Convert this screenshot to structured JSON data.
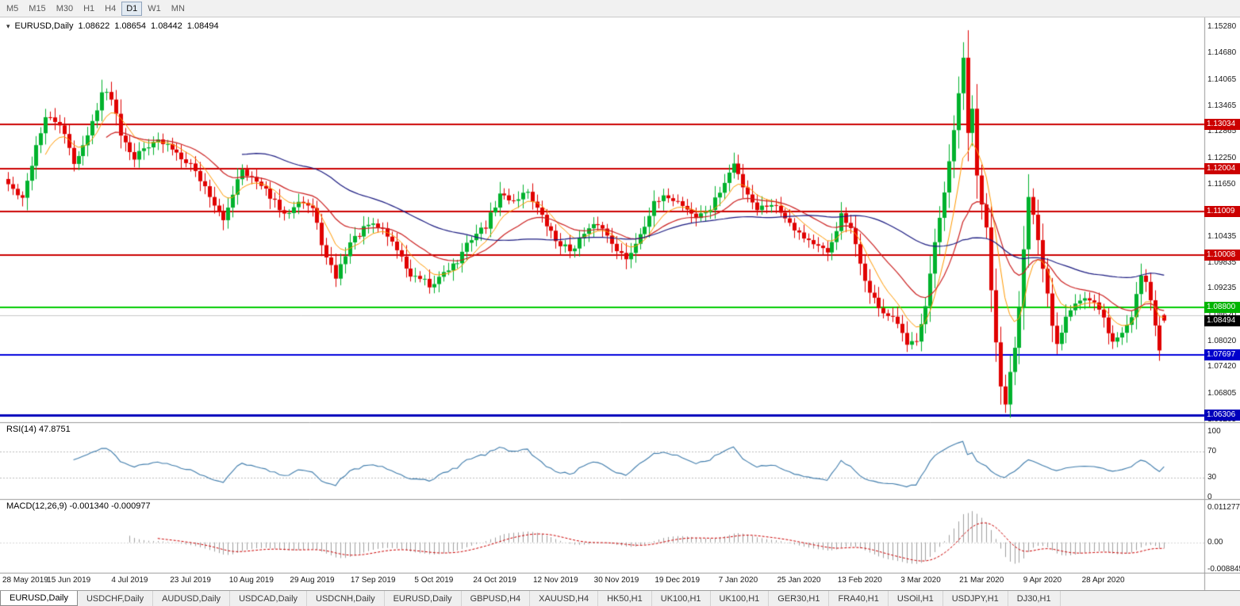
{
  "toolbar": {
    "timeframes": [
      "M5",
      "M15",
      "M30",
      "H1",
      "H4",
      "D1",
      "W1",
      "MN"
    ],
    "active_timeframe": "D1"
  },
  "chart_header": {
    "collapse_icon": "▾",
    "symbol": "EURUSD,Daily",
    "open": "1.08622",
    "high": "1.08654",
    "low": "1.08442",
    "close": "1.08494"
  },
  "price_axis": {
    "ticks": [
      "1.15280",
      "1.14680",
      "1.14065",
      "1.13465",
      "1.12865",
      "1.12250",
      "1.11650",
      "1.11050",
      "1.10435",
      "1.09835",
      "1.09235",
      "1.08620",
      "1.08020",
      "1.07420",
      "1.06805",
      "1.06205"
    ]
  },
  "levels": [
    {
      "value": "1.13034",
      "price": 1.13034,
      "color": "#cc0000",
      "line_width": 2,
      "badge_bg": "#cc0000"
    },
    {
      "value": "1.12004",
      "price": 1.12004,
      "color": "#cc0000",
      "line_width": 2,
      "badge_bg": "#cc0000"
    },
    {
      "value": "1.11009",
      "price": 1.11009,
      "color": "#cc0000",
      "line_width": 2,
      "badge_bg": "#cc0000"
    },
    {
      "value": "1.10008",
      "price": 1.10008,
      "color": "#cc0000",
      "line_width": 2,
      "badge_bg": "#cc0000"
    },
    {
      "value": "1.08800",
      "price": 1.088,
      "color": "#00cc00",
      "line_width": 2,
      "badge_bg": "#00b400"
    },
    {
      "value": "1.07697",
      "price": 1.07697,
      "color": "#0000dd",
      "line_width": 2,
      "badge_bg": "#0000cc"
    },
    {
      "value": "1.06306",
      "price": 1.06306,
      "color": "#0000bb",
      "line_width": 3,
      "badge_bg": "#0000bb"
    }
  ],
  "current_price": {
    "value": "1.08494",
    "price": 1.08494,
    "badge_bg": "#000000"
  },
  "gray_line_price": 1.0862,
  "date_axis": [
    "28 May 2019",
    "15 Jun 2019",
    "4 Jul 2019",
    "23 Jul 2019",
    "10 Aug 2019",
    "29 Aug 2019",
    "17 Sep 2019",
    "5 Oct 2019",
    "24 Oct 2019",
    "12 Nov 2019",
    "30 Nov 2019",
    "19 Dec 2019",
    "7 Jan 2020",
    "25 Jan 2020",
    "13 Feb 2020",
    "3 Mar 2020",
    "21 Mar 2020",
    "9 Apr 2020",
    "28 Apr 2020"
  ],
  "rsi_panel": {
    "label": "RSI(14) 47.8751",
    "axis": [
      "100",
      "70",
      "30",
      "0"
    ],
    "axis_values": [
      100,
      70,
      30,
      0
    ],
    "line_color": "#3f7cac",
    "level_lines": [
      70,
      30
    ]
  },
  "macd_panel": {
    "label": "MACD(12,26,9) -0.001340 -0.000977",
    "axis": [
      "0.011277",
      "0.00",
      "-0.008845"
    ],
    "axis_values": [
      0.011277,
      0,
      -0.008845
    ],
    "histogram_color": "#a0a0a0",
    "signal_color": "#cc0000"
  },
  "tabs": [
    "EURUSD,Daily",
    "USDCHF,Daily",
    "AUDUSD,Daily",
    "USDCAD,Daily",
    "USDCNH,Daily",
    "EURUSD,Daily",
    "GBPUSD,H4",
    "XAUUSD,H4",
    "HK50,H1",
    "UK100,H1",
    "UK100,H1",
    "GER30,H1",
    "FRA40,H1",
    "USOil,H1",
    "USDJPY,H1",
    "DJ30,H1"
  ],
  "active_tab_index": 0,
  "chart_data": {
    "type": "candlestick",
    "symbol": "EURUSD",
    "timeframe": "Daily",
    "bars_total": 248,
    "up_color": "#00b22d",
    "down_color": "#e00000",
    "price_range_visible": [
      1.06142,
      1.15509
    ],
    "last_quote": {
      "open": 1.08622,
      "high": 1.08654,
      "low": 1.08442,
      "close": 1.08494
    },
    "close_anchors": [
      [
        0,
        1.1165
      ],
      [
        3,
        1.1128
      ],
      [
        6,
        1.1255
      ],
      [
        8,
        1.1318
      ],
      [
        11,
        1.1305
      ],
      [
        14,
        1.1215
      ],
      [
        17,
        1.1275
      ],
      [
        20,
        1.1378
      ],
      [
        22,
        1.1368
      ],
      [
        24,
        1.1285
      ],
      [
        27,
        1.1227
      ],
      [
        31,
        1.1268
      ],
      [
        35,
        1.1248
      ],
      [
        39,
        1.1212
      ],
      [
        43,
        1.114
      ],
      [
        46,
        1.1076
      ],
      [
        49,
        1.118
      ],
      [
        50,
        1.1202
      ],
      [
        53,
        1.1168
      ],
      [
        56,
        1.1138
      ],
      [
        59,
        1.109
      ],
      [
        62,
        1.1132
      ],
      [
        65,
        1.1108
      ],
      [
        68,
        1.0992
      ],
      [
        70,
        1.095
      ],
      [
        73,
        1.103
      ],
      [
        77,
        1.107
      ],
      [
        80,
        1.1062
      ],
      [
        83,
        1.1015
      ],
      [
        86,
        1.0952
      ],
      [
        89,
        1.0938
      ],
      [
        90,
        1.092
      ],
      [
        93,
        1.0965
      ],
      [
        96,
        1.0985
      ],
      [
        99,
        1.1042
      ],
      [
        102,
        1.1068
      ],
      [
        105,
        1.114
      ],
      [
        108,
        1.1128
      ],
      [
        111,
        1.115
      ],
      [
        114,
        1.1088
      ],
      [
        117,
        1.1035
      ],
      [
        120,
        1.1012
      ],
      [
        123,
        1.1048
      ],
      [
        126,
        1.1075
      ],
      [
        129,
        1.1032
      ],
      [
        132,
        1.0988
      ],
      [
        135,
        1.1052
      ],
      [
        138,
        1.1118
      ],
      [
        141,
        1.1138
      ],
      [
        144,
        1.1118
      ],
      [
        147,
        1.1088
      ],
      [
        150,
        1.1108
      ],
      [
        153,
        1.1168
      ],
      [
        155,
        1.1212
      ],
      [
        157,
        1.1162
      ],
      [
        160,
        1.1108
      ],
      [
        163,
        1.1122
      ],
      [
        166,
        1.1092
      ],
      [
        169,
        1.1052
      ],
      [
        172,
        1.1028
      ],
      [
        175,
        1.1002
      ],
      [
        178,
        1.1092
      ],
      [
        180,
        1.1058
      ],
      [
        182,
        1.0982
      ],
      [
        184,
        1.0912
      ],
      [
        187,
        1.0868
      ],
      [
        190,
        1.0842
      ],
      [
        192,
        1.0788
      ],
      [
        194,
        1.0808
      ],
      [
        196,
        1.0888
      ],
      [
        198,
        1.1028
      ],
      [
        200,
        1.1138
      ],
      [
        202,
        1.1288
      ],
      [
        204,
        1.1452
      ],
      [
        205,
        1.1282
      ],
      [
        206,
        1.1342
      ],
      [
        207,
        1.1186
      ],
      [
        208,
        1.1112
      ],
      [
        209,
        1.1062
      ],
      [
        210,
        1.0922
      ],
      [
        211,
        1.0792
      ],
      [
        212,
        1.0695
      ],
      [
        213,
        1.0658
      ],
      [
        214,
        1.0725
      ],
      [
        215,
        1.0792
      ],
      [
        216,
        1.0882
      ],
      [
        217,
        1.1022
      ],
      [
        218,
        1.1142
      ],
      [
        219,
        1.1092
      ],
      [
        220,
        1.1032
      ],
      [
        221,
        1.0962
      ],
      [
        222,
        1.0906
      ],
      [
        223,
        1.0838
      ],
      [
        224,
        1.0792
      ],
      [
        226,
        1.0862
      ],
      [
        228,
        1.0896
      ],
      [
        230,
        1.0902
      ],
      [
        232,
        1.0888
      ],
      [
        234,
        1.0852
      ],
      [
        236,
        1.0798
      ],
      [
        238,
        1.0822
      ],
      [
        240,
        1.0858
      ],
      [
        241,
        1.0912
      ],
      [
        242,
        1.0956
      ],
      [
        243,
        1.0942
      ],
      [
        244,
        1.0902
      ],
      [
        245,
        1.0838
      ],
      [
        246,
        1.0784
      ],
      [
        247,
        1.08494
      ]
    ],
    "moving_averages": [
      {
        "type": "EMA",
        "period": 8,
        "color": "#ff9900"
      },
      {
        "type": "EMA",
        "period": 21,
        "color": "#cc2020"
      },
      {
        "type": "SMA",
        "period": 50,
        "color": "#1a1a80"
      }
    ],
    "indicators": [
      {
        "name": "RSI",
        "period": 14,
        "current": 47.8751,
        "range": [
          0,
          100
        ],
        "levels": [
          70,
          30
        ]
      },
      {
        "name": "MACD",
        "fast": 12,
        "slow": 26,
        "signal": 9,
        "macd_current": -0.00134,
        "signal_current": -0.000977,
        "scale_max": 0.011277,
        "scale_min": -0.008845
      }
    ]
  }
}
